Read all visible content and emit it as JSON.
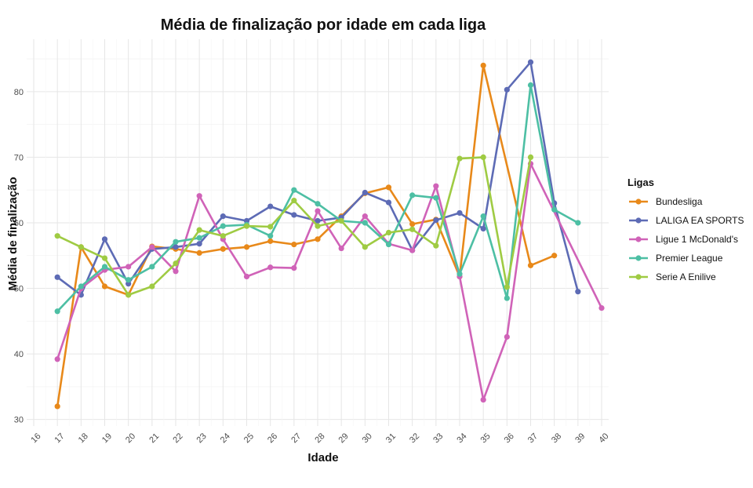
{
  "chart_data": {
    "type": "line",
    "title": "Média de finalização por idade em cada liga",
    "xlabel": "Idade",
    "ylabel": "Média de finalização",
    "x_ticks": [
      16,
      17,
      18,
      19,
      20,
      21,
      22,
      23,
      24,
      25,
      26,
      27,
      28,
      29,
      30,
      31,
      32,
      33,
      34,
      35,
      36,
      37,
      38,
      39,
      40
    ],
    "y_ticks": [
      30,
      40,
      50,
      60,
      70,
      80
    ],
    "xlim": [
      16,
      40
    ],
    "ylim": [
      29,
      88
    ],
    "grid": true,
    "legend_title": "Ligas",
    "legend_position": "right",
    "series": [
      {
        "name": "Bundesliga",
        "color": "#E8891A",
        "points": [
          [
            17,
            32
          ],
          [
            18,
            56.3
          ],
          [
            19,
            50.3
          ],
          [
            20,
            49
          ],
          [
            21,
            56.4
          ],
          [
            22,
            56
          ],
          [
            23,
            55.4
          ],
          [
            24,
            56
          ],
          [
            25,
            56.3
          ],
          [
            26,
            57.2
          ],
          [
            27,
            56.7
          ],
          [
            28,
            57.5
          ],
          [
            29,
            61
          ],
          [
            30,
            64.5
          ],
          [
            31,
            65.4
          ],
          [
            32,
            59.8
          ],
          [
            33,
            60.5
          ],
          [
            34,
            51.8
          ],
          [
            35,
            84
          ],
          [
            37,
            53.5
          ],
          [
            38,
            55
          ]
        ]
      },
      {
        "name": "LALIGA EA SPORTS",
        "color": "#5D6BB5",
        "points": [
          [
            17,
            51.7
          ],
          [
            18,
            49
          ],
          [
            19,
            57.5
          ],
          [
            20,
            50.7
          ],
          [
            21,
            56
          ],
          [
            22,
            56.3
          ],
          [
            23,
            56.8
          ],
          [
            24,
            61
          ],
          [
            25,
            60.3
          ],
          [
            26,
            62.5
          ],
          [
            27,
            61.2
          ],
          [
            28,
            60.3
          ],
          [
            29,
            60.8
          ],
          [
            30,
            64.6
          ],
          [
            31,
            63.1
          ],
          [
            32,
            55.8
          ],
          [
            33,
            60.4
          ],
          [
            34,
            61.5
          ],
          [
            35,
            59.1
          ],
          [
            36,
            80.3
          ],
          [
            37,
            84.5
          ],
          [
            38,
            63
          ],
          [
            39,
            49.5
          ]
        ]
      },
      {
        "name": "Ligue 1 McDonald's",
        "color": "#D063B8",
        "points": [
          [
            17,
            39.2
          ],
          [
            18,
            50
          ],
          [
            19,
            52.8
          ],
          [
            20,
            53.3
          ],
          [
            21,
            56.3
          ],
          [
            22,
            52.6
          ],
          [
            23,
            64.1
          ],
          [
            24,
            57.5
          ],
          [
            25,
            51.8
          ],
          [
            26,
            53.2
          ],
          [
            27,
            53.1
          ],
          [
            28,
            61.8
          ],
          [
            29,
            56.1
          ],
          [
            30,
            61
          ],
          [
            31,
            56.8
          ],
          [
            32,
            55.8
          ],
          [
            33,
            65.6
          ],
          [
            34,
            51.8
          ],
          [
            35,
            33
          ],
          [
            36,
            42.6
          ],
          [
            37,
            69
          ],
          [
            40,
            47
          ]
        ]
      },
      {
        "name": "Premier League",
        "color": "#4DBFA4",
        "points": [
          [
            17,
            46.5
          ],
          [
            18,
            50.3
          ],
          [
            19,
            53.3
          ],
          [
            20,
            51.3
          ],
          [
            21,
            53.3
          ],
          [
            22,
            57.1
          ],
          [
            23,
            57.7
          ],
          [
            24,
            59.5
          ],
          [
            25,
            59.7
          ],
          [
            26,
            58
          ],
          [
            27,
            65
          ],
          [
            28,
            62.9
          ],
          [
            29,
            60.3
          ],
          [
            30,
            60
          ],
          [
            31,
            56.7
          ],
          [
            32,
            64.2
          ],
          [
            33,
            63.8
          ],
          [
            34,
            52.2
          ],
          [
            35,
            61
          ],
          [
            36,
            48.5
          ],
          [
            37,
            81
          ],
          [
            38,
            62
          ],
          [
            39,
            60
          ]
        ]
      },
      {
        "name": "Serie A Enilive",
        "color": "#9FCB43",
        "points": [
          [
            17,
            58
          ],
          [
            18,
            56.3
          ],
          [
            19,
            54.6
          ],
          [
            20,
            49
          ],
          [
            21,
            50.3
          ],
          [
            22,
            53.8
          ],
          [
            23,
            58.9
          ],
          [
            24,
            58
          ],
          [
            25,
            59.5
          ],
          [
            26,
            59.4
          ],
          [
            27,
            63.4
          ],
          [
            28,
            59.5
          ],
          [
            29,
            60.3
          ],
          [
            30,
            56.3
          ],
          [
            31,
            58.5
          ],
          [
            32,
            59
          ],
          [
            33,
            56.5
          ],
          [
            34,
            69.8
          ],
          [
            35,
            70
          ],
          [
            36,
            50.2
          ],
          [
            37,
            70
          ]
        ]
      }
    ]
  }
}
